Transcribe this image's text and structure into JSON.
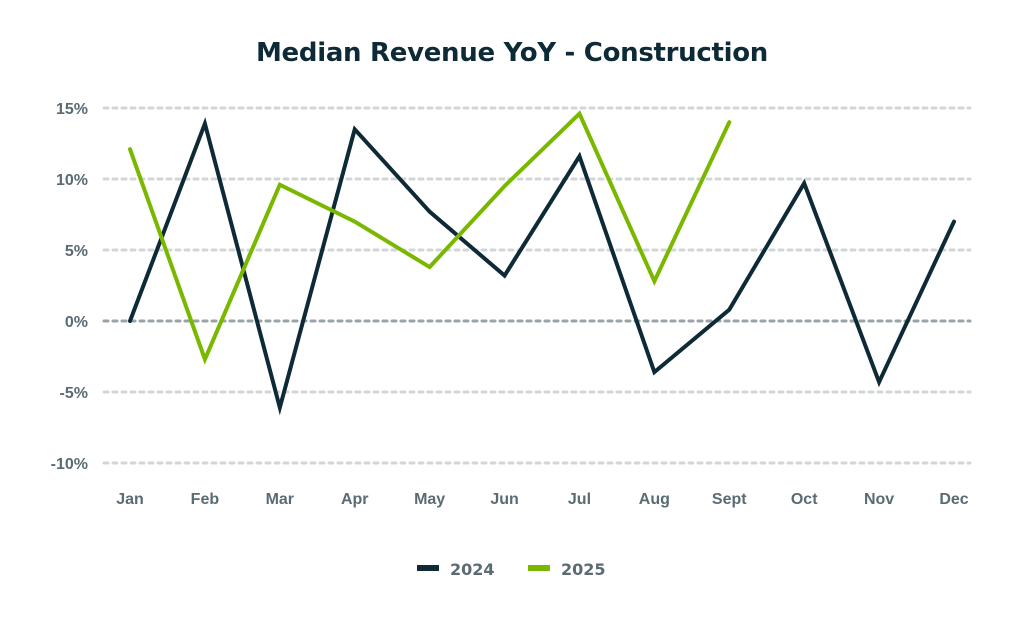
{
  "chart_data": {
    "type": "line",
    "title": "Median Revenue YoY - Construction",
    "xlabel": "",
    "ylabel": "",
    "categories": [
      "Jan",
      "Feb",
      "Mar",
      "Apr",
      "May",
      "Jun",
      "Jul",
      "Aug",
      "Sept",
      "Oct",
      "Nov",
      "Dec"
    ],
    "ylim": [
      -10,
      15
    ],
    "yticks": [
      15,
      10,
      5,
      0,
      -5,
      -10
    ],
    "ytick_labels": [
      "15%",
      "10%",
      "5%",
      "0%",
      "-5%",
      "-10%"
    ],
    "grid": true,
    "legend_position": "bottom-center",
    "series": [
      {
        "name": "2024",
        "color": "#0d2a36",
        "values": [
          0.0,
          13.9,
          -6.1,
          13.5,
          7.7,
          3.2,
          11.6,
          -3.6,
          0.8,
          9.7,
          -4.3,
          7.0
        ]
      },
      {
        "name": "2025",
        "color": "#7ab800",
        "values": [
          12.1,
          -2.7,
          9.6,
          7.0,
          3.8,
          9.5,
          14.6,
          2.8,
          14.0
        ]
      }
    ]
  }
}
